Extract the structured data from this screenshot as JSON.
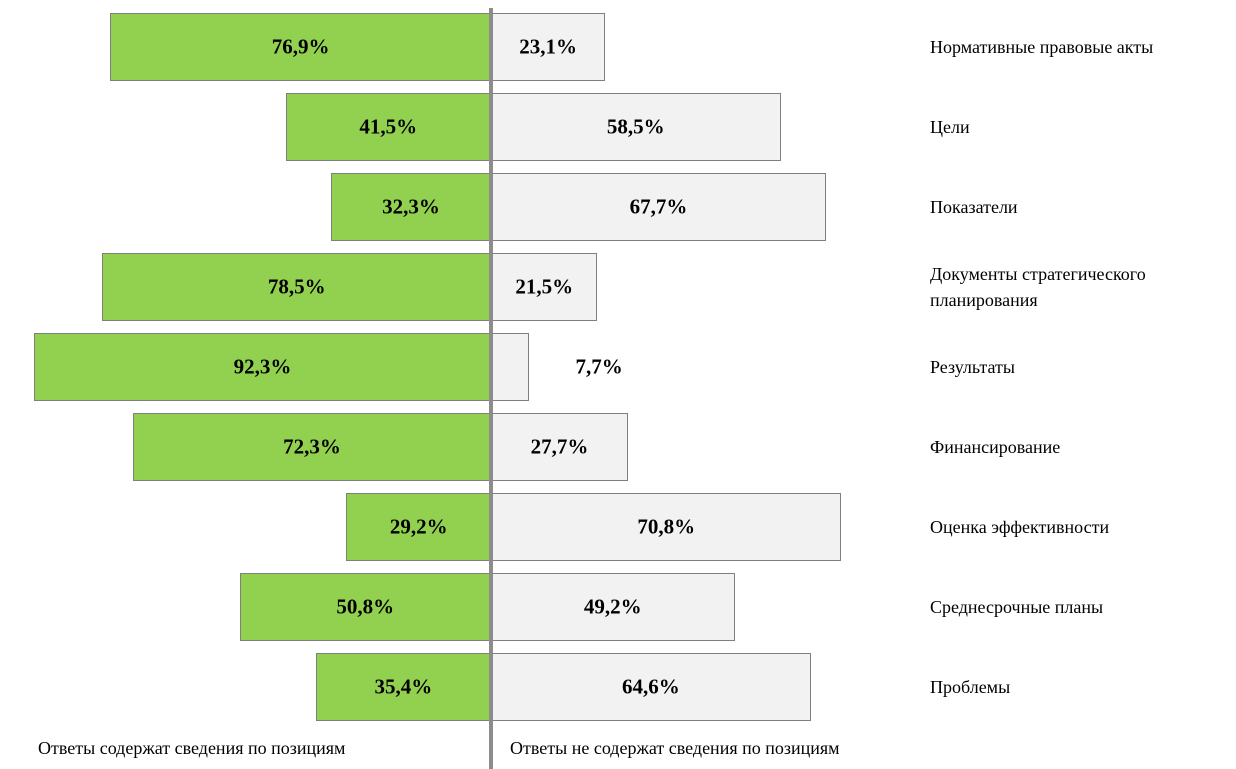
{
  "chart_data": {
    "type": "diverging_bar",
    "categories": [
      "Нормативные правовые акты",
      "Цели",
      "Показатели",
      "Документы стратегического планирования",
      "Результаты",
      "Финансирование",
      "Оценка эффективности",
      "Среднесрочные планы",
      "Проблемы"
    ],
    "series": [
      {
        "name": "Ответы содержат сведения по позициям",
        "color": "#92d050",
        "values": [
          76.9,
          41.5,
          32.3,
          78.5,
          92.3,
          72.3,
          29.2,
          50.8,
          35.4
        ],
        "value_labels": [
          "76,9%",
          "41,5%",
          "32,3%",
          "78,5%",
          "92,3%",
          "72,3%",
          "29,2%",
          "50,8%",
          "35,4%"
        ]
      },
      {
        "name": "Ответы не содержат сведения по позициям",
        "color": "#f2f2f2",
        "values": [
          23.1,
          58.5,
          67.7,
          21.5,
          7.7,
          27.7,
          70.8,
          49.2,
          64.6
        ],
        "value_labels": [
          "23,1%",
          "58,5%",
          "67,7%",
          "21,5%",
          "7,7%",
          "27,7%",
          "70,8%",
          "49,2%",
          "64,6%"
        ]
      }
    ]
  }
}
